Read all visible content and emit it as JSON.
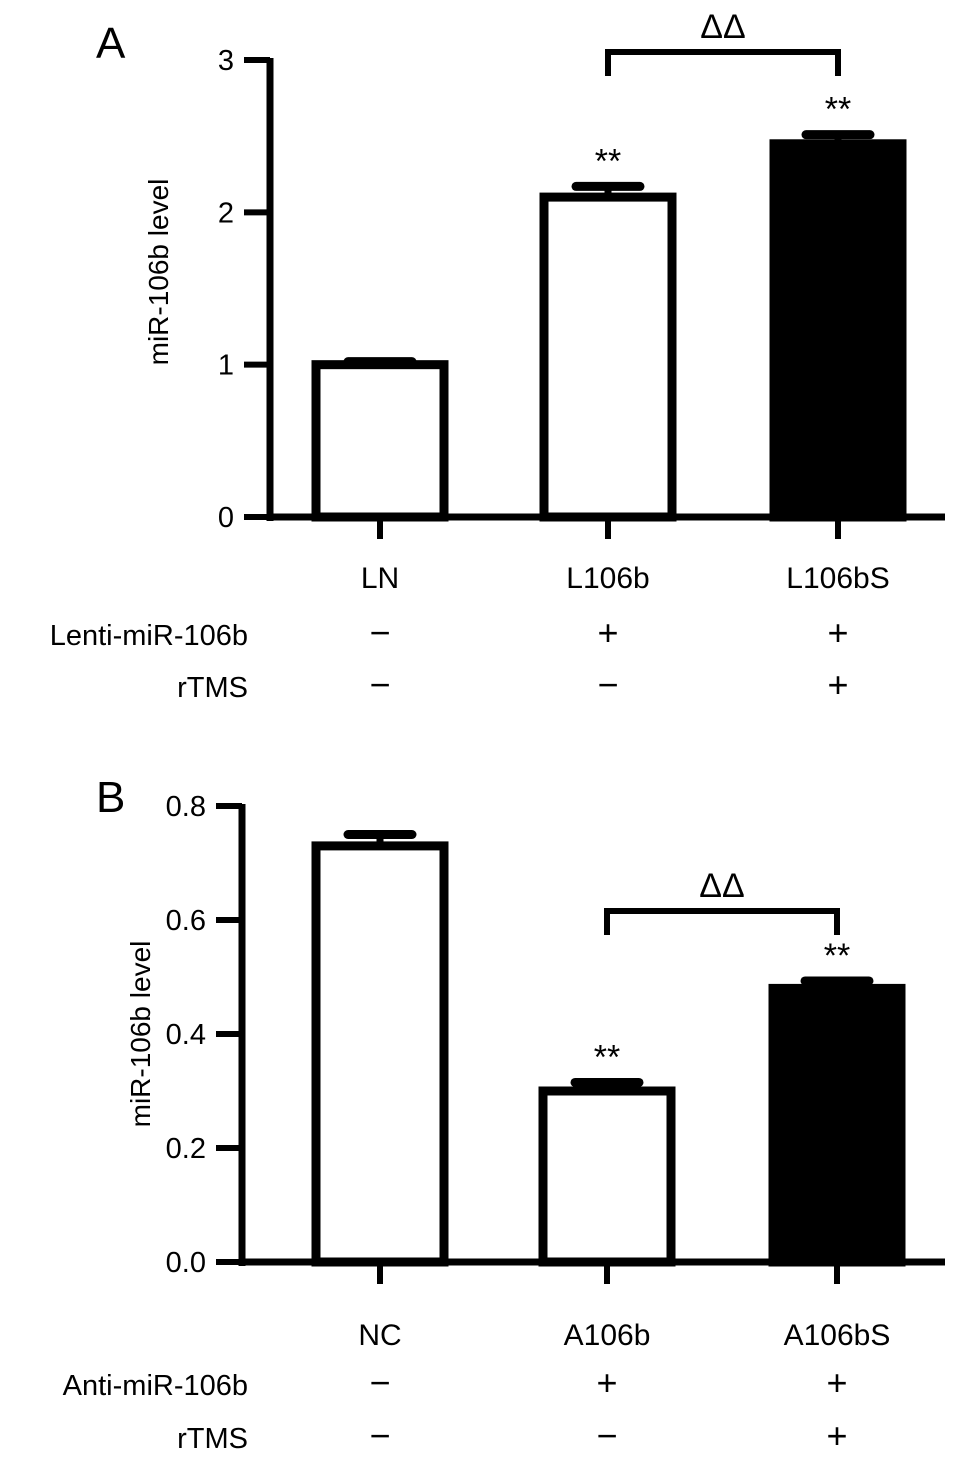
{
  "chart_data": [
    {
      "panel": "A",
      "type": "bar",
      "ylabel": "miR-106b level",
      "ylim": [
        0,
        3
      ],
      "yticks": [
        "0",
        "1",
        "2",
        "3"
      ],
      "categories": [
        "LN",
        "L106b",
        "L106bS"
      ],
      "values": [
        1.0,
        2.1,
        2.45
      ],
      "errors": [
        0.02,
        0.07,
        0.06
      ],
      "fills": [
        "#ffffff",
        "#ffffff",
        "#000000"
      ],
      "stars": [
        "",
        "**",
        "**"
      ],
      "bracket": {
        "from": 1,
        "to": 2,
        "label": "ΔΔ"
      },
      "conditions": [
        {
          "label": "Lenti-miR-106b",
          "signs": [
            "−",
            "+",
            "+"
          ]
        },
        {
          "label": "rTMS",
          "signs": [
            "−",
            "−",
            "+"
          ]
        }
      ]
    },
    {
      "panel": "B",
      "type": "bar",
      "ylabel": "miR-106b level",
      "ylim": [
        0,
        0.8
      ],
      "yticks": [
        "0.0",
        "0.2",
        "0.4",
        "0.6",
        "0.8"
      ],
      "categories": [
        "NC",
        "A106b",
        "A106bS"
      ],
      "values": [
        0.73,
        0.3,
        0.48
      ],
      "errors": [
        0.02,
        0.015,
        0.013
      ],
      "fills": [
        "#ffffff",
        "#ffffff",
        "#000000"
      ],
      "stars": [
        "",
        "**",
        "**"
      ],
      "bracket": {
        "from": 1,
        "to": 2,
        "label": "ΔΔ"
      },
      "conditions": [
        {
          "label": "Anti-miR-106b",
          "signs": [
            "−",
            "+",
            "+"
          ]
        },
        {
          "label": "rTMS",
          "signs": [
            "−",
            "−",
            "+"
          ]
        }
      ]
    }
  ]
}
